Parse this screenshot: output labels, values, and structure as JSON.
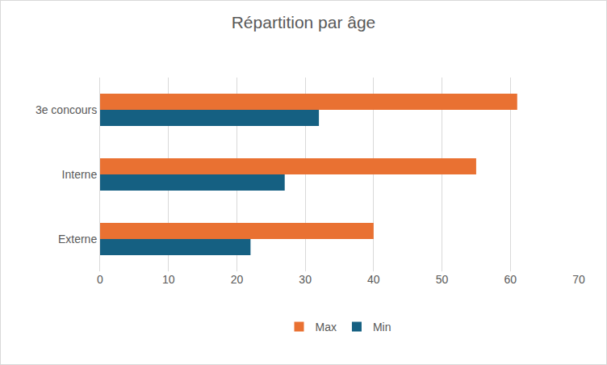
{
  "chart_data": {
    "type": "bar",
    "title": "Répartition par âge",
    "orientation": "horizontal",
    "categories": [
      "Externe",
      "Interne",
      "3e concours"
    ],
    "series": [
      {
        "name": "Max",
        "color": "#e97132",
        "values": [
          40,
          55,
          61
        ]
      },
      {
        "name": "Min",
        "color": "#156082",
        "values": [
          22,
          27,
          32
        ]
      }
    ],
    "xlim": [
      0,
      70
    ],
    "xticks": [
      0,
      10,
      20,
      30,
      40,
      50,
      60,
      70
    ],
    "grid": true,
    "legend": "bottom"
  }
}
